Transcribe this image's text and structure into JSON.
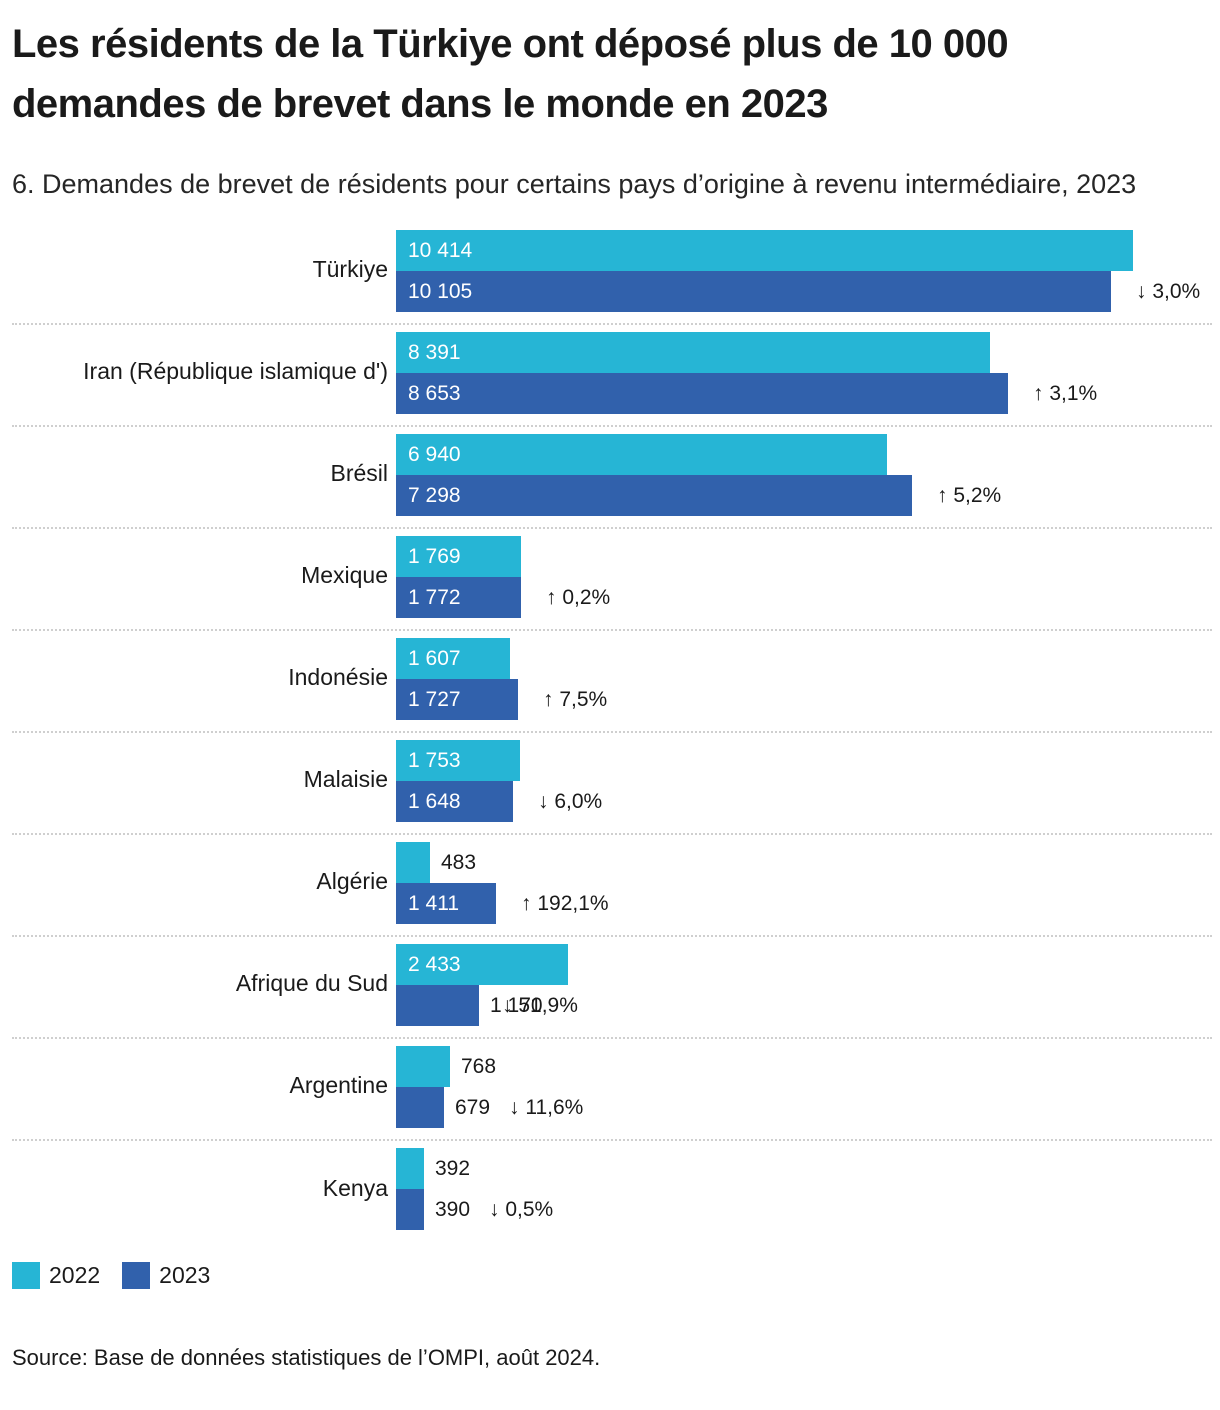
{
  "header": {
    "title": "Les résidents de la Türkiye ont déposé plus de 10 000 demandes de brevet dans le monde en 2023",
    "subtitle": "6. Demandes de brevet de résidents pour certains pays d’origine à revenu intermédiaire, 2023"
  },
  "chart_data": {
    "type": "bar",
    "orientation": "horizontal",
    "title": "Les résidents de la Türkiye ont déposé plus de 10 000 demandes de brevet dans le monde en 2023",
    "subtitle": "6. Demandes de brevet de résidents pour certains pays d’origine à revenu intermédiaire, 2023",
    "categories": [
      "Türkiye",
      "Iran (République islamique d')",
      "Brésil",
      "Mexique",
      "Indonésie",
      "Malaisie",
      "Algérie",
      "Afrique du Sud",
      "Argentine",
      "Kenya"
    ],
    "series": [
      {
        "name": "2022",
        "color": "#26B5D5",
        "values": [
          10414,
          8391,
          6940,
          1769,
          1607,
          1753,
          483,
          2433,
          768,
          392
        ],
        "labels": [
          "10 414",
          "8 391",
          "6 940",
          "1 769",
          "1 607",
          "1 753",
          "483",
          "2 433",
          "768",
          "392"
        ]
      },
      {
        "name": "2023",
        "color": "#3161AC",
        "values": [
          10105,
          8653,
          7298,
          1772,
          1727,
          1648,
          1411,
          1170,
          679,
          390
        ],
        "labels": [
          "10 105",
          "8 653",
          "7 298",
          "1 772",
          "1 727",
          "1 648",
          "1 411",
          "1 170",
          "679",
          "390"
        ]
      }
    ],
    "change_labels": [
      "↓ 3,0%",
      "↑ 3,1%",
      "↑ 5,2%",
      "↑ 0,2%",
      "↑ 7,5%",
      "↓ 6,0%",
      "↑ 192,1%",
      "↓ 51,9%",
      "↓ 11,6%",
      "↓ 0,5%"
    ],
    "xlim": [
      0,
      10414
    ],
    "grid": "dotted-row-separators",
    "legend_position": "bottom"
  },
  "legend": {
    "items": [
      {
        "label": "2022",
        "color": "#26B5D5"
      },
      {
        "label": "2023",
        "color": "#3161AC"
      }
    ]
  },
  "source": "Source: Base de données statistiques de l’OMPI, août 2024."
}
